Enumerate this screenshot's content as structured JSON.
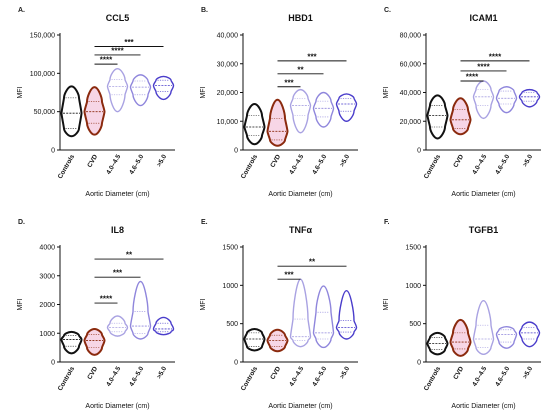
{
  "x_axis_label": "Aortic Diameter (cm)",
  "y_axis_label": "MFI",
  "categories": [
    "Controls",
    "CVD",
    "4.0–4.5",
    "4.6–5.0",
    ">5.0"
  ],
  "colors": {
    "Controls": "#111111",
    "CVD": "#8b2a0e",
    "4.0–4.5": "#a9a2e2",
    "4.6–5.0": "#8f86dc",
    ">5.0": "#4a3dcb",
    "cvd_fill": "#f7d6e6"
  },
  "chart_data": [
    {
      "type": "violin",
      "panel": "A.",
      "title": "CCL5",
      "ylabel": "MFI",
      "xlabel": "Aortic Diameter (cm)",
      "ylim": [
        0,
        150000
      ],
      "yticks": [
        0,
        50000,
        100000,
        150000
      ],
      "ytick_labels": [
        "0",
        "50,000",
        "100,000",
        "150,000"
      ],
      "groups": [
        {
          "name": "Controls",
          "min": 18000,
          "q1": 28000,
          "median": 48000,
          "q3": 68000,
          "max": 83000
        },
        {
          "name": "CVD",
          "min": 20000,
          "q1": 35000,
          "median": 50000,
          "q3": 63000,
          "max": 82000
        },
        {
          "name": "4.0–4.5",
          "min": 50000,
          "q1": 72000,
          "median": 83000,
          "q3": 92000,
          "max": 106000
        },
        {
          "name": "4.6–5.0",
          "min": 58000,
          "q1": 72000,
          "median": 82000,
          "q3": 90000,
          "max": 98000
        },
        {
          "name": ">5.0",
          "min": 66000,
          "q1": 76000,
          "median": 84000,
          "q3": 91000,
          "max": 96000
        }
      ],
      "significance": [
        {
          "from": "CVD",
          "to": "4.0–4.5",
          "label": "****",
          "y": 112000
        },
        {
          "from": "CVD",
          "to": "4.6–5.0",
          "label": "****",
          "y": 124000
        },
        {
          "from": "CVD",
          "to": ">5.0",
          "label": "***",
          "y": 135000
        }
      ]
    },
    {
      "type": "violin",
      "panel": "B.",
      "title": "HBD1",
      "ylabel": "MFI",
      "xlabel": "Aortic Diameter (cm)",
      "ylim": [
        0,
        40000
      ],
      "yticks": [
        0,
        10000,
        20000,
        30000,
        40000
      ],
      "ytick_labels": [
        "0",
        "10,000",
        "20,000",
        "30,000",
        "40,000"
      ],
      "groups": [
        {
          "name": "Controls",
          "min": 2000,
          "q1": 5000,
          "median": 8000,
          "q3": 12000,
          "max": 16000
        },
        {
          "name": "CVD",
          "min": 1500,
          "q1": 3500,
          "median": 6500,
          "q3": 11000,
          "max": 17500
        },
        {
          "name": "4.0–4.5",
          "min": 6000,
          "q1": 12000,
          "median": 15500,
          "q3": 18000,
          "max": 21000
        },
        {
          "name": "4.6–5.0",
          "min": 8000,
          "q1": 11500,
          "median": 14500,
          "q3": 17000,
          "max": 20000
        },
        {
          "name": ">5.0",
          "min": 10000,
          "q1": 13500,
          "median": 16000,
          "q3": 18000,
          "max": 19500
        }
      ],
      "significance": [
        {
          "from": "CVD",
          "to": "4.0–4.5",
          "label": "***",
          "y": 22000
        },
        {
          "from": "CVD",
          "to": "4.6–5.0",
          "label": "**",
          "y": 26500
        },
        {
          "from": "CVD",
          "to": ">5.0",
          "label": "***",
          "y": 31000
        }
      ]
    },
    {
      "type": "violin",
      "panel": "C.",
      "title": "ICAM1",
      "ylabel": "MFI",
      "xlabel": "Aortic Diameter (cm)",
      "ylim": [
        0,
        80000
      ],
      "yticks": [
        0,
        20000,
        40000,
        60000,
        80000
      ],
      "ytick_labels": [
        "0",
        "20,000",
        "40,000",
        "60,000",
        "80,000"
      ],
      "groups": [
        {
          "name": "Controls",
          "min": 8000,
          "q1": 16000,
          "median": 24000,
          "q3": 31000,
          "max": 38000
        },
        {
          "name": "CVD",
          "min": 11000,
          "q1": 15000,
          "median": 21000,
          "q3": 28000,
          "max": 36000
        },
        {
          "name": "4.0–4.5",
          "min": 22000,
          "q1": 31000,
          "median": 37000,
          "q3": 42000,
          "max": 48000
        },
        {
          "name": "4.6–5.0",
          "min": 26000,
          "q1": 32000,
          "median": 36000,
          "q3": 41000,
          "max": 44000
        },
        {
          "name": ">5.0",
          "min": 30000,
          "q1": 34000,
          "median": 37000,
          "q3": 40000,
          "max": 42000
        }
      ],
      "significance": [
        {
          "from": "CVD",
          "to": "4.0–4.5",
          "label": "****",
          "y": 48000
        },
        {
          "from": "CVD",
          "to": "4.6–5.0",
          "label": "****",
          "y": 55000
        },
        {
          "from": "CVD",
          "to": ">5.0",
          "label": "****",
          "y": 62000
        }
      ]
    },
    {
      "type": "violin",
      "panel": "D.",
      "title": "IL8",
      "ylabel": "MFI",
      "xlabel": "Aortic Diameter (cm)",
      "ylim": [
        0,
        4000
      ],
      "yticks": [
        0,
        1000,
        2000,
        3000,
        4000
      ],
      "ytick_labels": [
        "0",
        "1000",
        "2000",
        "3000",
        "4000"
      ],
      "groups": [
        {
          "name": "Controls",
          "min": 300,
          "q1": 550,
          "median": 780,
          "q3": 920,
          "max": 1050
        },
        {
          "name": "CVD",
          "min": 250,
          "q1": 500,
          "median": 750,
          "q3": 950,
          "max": 1150
        },
        {
          "name": "4.0–4.5",
          "min": 900,
          "q1": 1050,
          "median": 1200,
          "q3": 1350,
          "max": 1600
        },
        {
          "name": "4.6–5.0",
          "min": 800,
          "q1": 1000,
          "median": 1250,
          "q3": 1750,
          "max": 2800
        },
        {
          "name": ">5.0",
          "min": 950,
          "q1": 1050,
          "median": 1150,
          "q3": 1350,
          "max": 1550
        }
      ],
      "significance": [
        {
          "from": "CVD",
          "to": "4.0–4.5",
          "label": "****",
          "y": 2050
        },
        {
          "from": "CVD",
          "to": "4.6–5.0",
          "label": "***",
          "y": 2950
        },
        {
          "from": "CVD",
          "to": ">5.0",
          "label": "**",
          "y": 3580
        }
      ]
    },
    {
      "type": "violin",
      "panel": "E.",
      "title": "TNFα",
      "ylabel": "MFI",
      "xlabel": "Aortic Diameter (cm)",
      "ylim": [
        0,
        1500
      ],
      "yticks": [
        0,
        500,
        1000,
        1500
      ],
      "ytick_labels": [
        "0",
        "500",
        "1000",
        "1500"
      ],
      "groups": [
        {
          "name": "Controls",
          "min": 150,
          "q1": 200,
          "median": 300,
          "q3": 380,
          "max": 430
        },
        {
          "name": "CVD",
          "min": 140,
          "q1": 200,
          "median": 280,
          "q3": 350,
          "max": 420
        },
        {
          "name": "4.0–4.5",
          "min": 200,
          "q1": 280,
          "median": 330,
          "q3": 560,
          "max": 1080
        },
        {
          "name": "4.6–5.0",
          "min": 190,
          "q1": 300,
          "median": 380,
          "q3": 650,
          "max": 990
        },
        {
          "name": ">5.0",
          "min": 300,
          "q1": 390,
          "median": 450,
          "q3": 540,
          "max": 930
        }
      ],
      "significance": [
        {
          "from": "CVD",
          "to": "4.0–4.5",
          "label": "***",
          "y": 1080
        },
        {
          "from": "CVD",
          "to": ">5.0",
          "label": "**",
          "y": 1250
        }
      ]
    },
    {
      "type": "violin",
      "panel": "F.",
      "title": "TGFB1",
      "ylabel": "MFI",
      "xlabel": "Aortic Diameter (cm)",
      "ylim": [
        0,
        1500
      ],
      "yticks": [
        0,
        500,
        1000,
        1500
      ],
      "ytick_labels": [
        "0",
        "500",
        "1000",
        "1500"
      ],
      "groups": [
        {
          "name": "Controls",
          "min": 100,
          "q1": 160,
          "median": 240,
          "q3": 320,
          "max": 380
        },
        {
          "name": "CVD",
          "min": 80,
          "q1": 170,
          "median": 260,
          "q3": 380,
          "max": 550
        },
        {
          "name": "4.0–4.5",
          "min": 100,
          "q1": 190,
          "median": 300,
          "q3": 480,
          "max": 800
        },
        {
          "name": "4.6–5.0",
          "min": 180,
          "q1": 260,
          "median": 360,
          "q3": 420,
          "max": 460
        },
        {
          "name": ">5.0",
          "min": 200,
          "q1": 300,
          "median": 380,
          "q3": 450,
          "max": 520
        }
      ],
      "significance": []
    }
  ]
}
